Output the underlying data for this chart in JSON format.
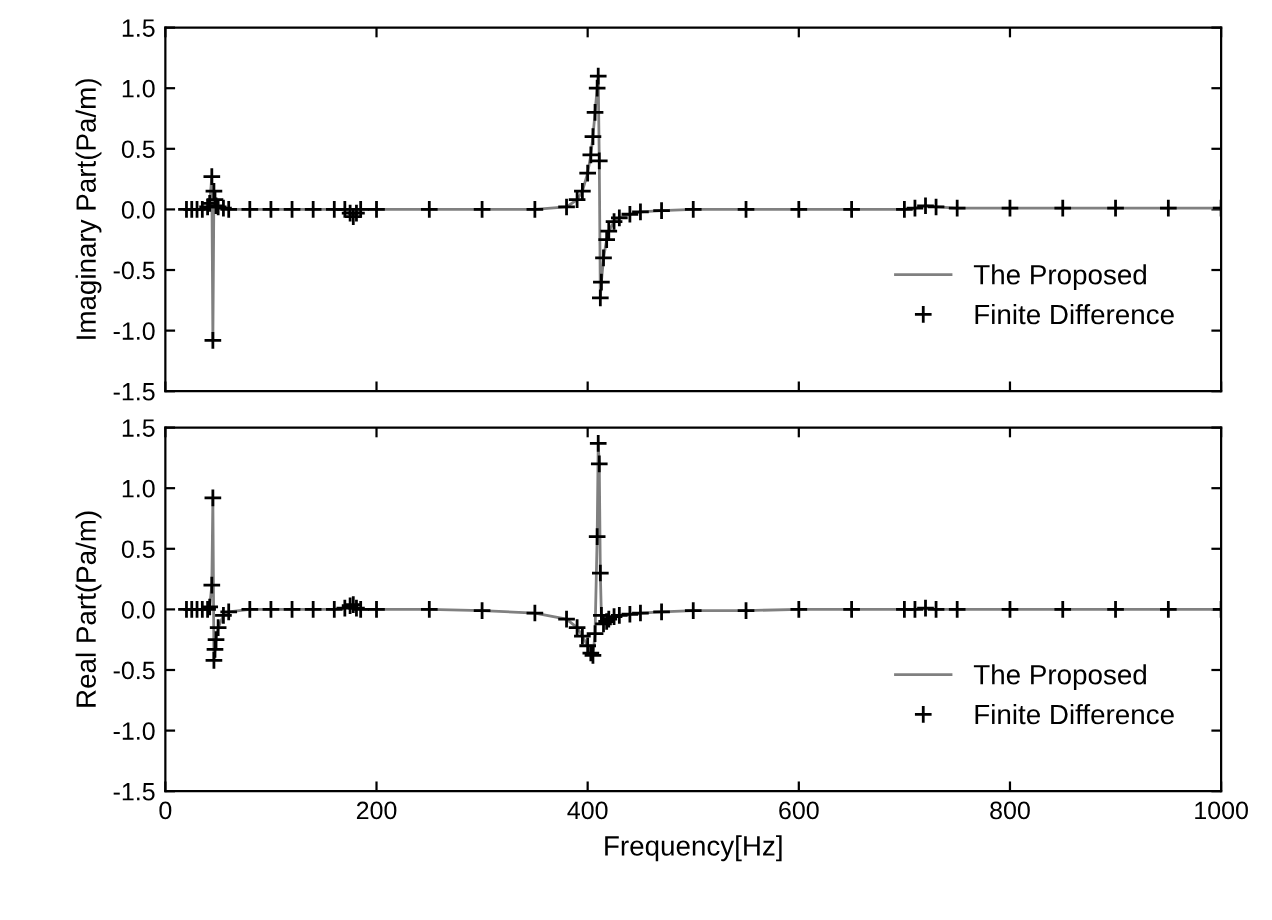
{
  "chart_data": [
    {
      "type": "line",
      "ylabel": "Imaginary Part(Pa/m)",
      "xlim": [
        0,
        1000
      ],
      "xticks": [
        0,
        200,
        400,
        600,
        800,
        1000
      ],
      "ylim": [
        -1.5,
        1.5
      ],
      "yticks": [
        -1.5,
        {
          "value": -1,
          "label": "-1.0"
        },
        -0.5,
        {
          "value": 0,
          "label": "0.0"
        },
        0.5,
        {
          "value": 1,
          "label": "1.0"
        },
        1.5
      ],
      "tick_labels": "y",
      "legend": "bottom right",
      "grid": false,
      "x": [
        20,
        25,
        30,
        35,
        40,
        42,
        44,
        45,
        46,
        47,
        48,
        50,
        55,
        60,
        80,
        100,
        120,
        140,
        160,
        170,
        175,
        178,
        181,
        185,
        200,
        250,
        300,
        350,
        380,
        390,
        395,
        400,
        403,
        405,
        407,
        409,
        410,
        411,
        412,
        413,
        415,
        418,
        420,
        425,
        430,
        440,
        450,
        470,
        500,
        550,
        600,
        650,
        700,
        710,
        720,
        730,
        750,
        800,
        850,
        900,
        950,
        1000
      ],
      "series": [
        {
          "name": "The Proposed",
          "color": "#808080",
          "line_style": "solid",
          "marker": "none",
          "values": [
            0,
            0,
            0,
            0,
            0.02,
            0.05,
            0.27,
            -1.08,
            0.15,
            0.08,
            0.03,
            0.02,
            0.01,
            0,
            0,
            0,
            0,
            0,
            0,
            0,
            -0.03,
            -0.06,
            -0.03,
            0,
            0,
            0,
            0,
            0,
            0.02,
            0.08,
            0.15,
            0.3,
            0.45,
            0.6,
            0.8,
            1.0,
            1.1,
            0.4,
            -0.73,
            -0.6,
            -0.4,
            -0.25,
            -0.18,
            -0.1,
            -0.07,
            -0.04,
            -0.02,
            -0.01,
            0,
            0,
            0,
            0,
            0,
            0.01,
            0.03,
            0.02,
            0.01,
            0.01,
            0.01,
            0.01,
            0.01,
            0.01
          ]
        },
        {
          "name": "Finite Difference",
          "type": "scatter",
          "color": "#000000",
          "marker": "cross",
          "values": [
            0,
            0,
            0,
            0,
            0.02,
            0.05,
            0.27,
            -1.08,
            0.15,
            0.08,
            0.03,
            0.02,
            0.01,
            0,
            0,
            0,
            0,
            0,
            0,
            0,
            -0.03,
            -0.06,
            -0.03,
            0,
            0,
            0,
            0,
            0,
            0.02,
            0.08,
            0.15,
            0.3,
            0.45,
            0.6,
            0.8,
            1.0,
            1.1,
            0.4,
            -0.73,
            -0.6,
            -0.4,
            -0.25,
            -0.18,
            -0.1,
            -0.07,
            -0.04,
            -0.02,
            -0.01,
            0,
            0,
            0,
            0,
            0,
            0.01,
            0.03,
            0.02,
            0.01,
            0.01,
            0.01,
            0.01,
            0.01,
            0.01
          ]
        }
      ]
    },
    {
      "type": "line",
      "ylabel": "Real Part(Pa/m)",
      "xlabel": "Frequency[Hz]",
      "xlim": [
        0,
        1000
      ],
      "xticks": [
        0,
        200,
        400,
        600,
        800,
        1000
      ],
      "ylim": [
        -1.5,
        1.5
      ],
      "yticks": [
        -1.5,
        {
          "value": -1,
          "label": "-1.0"
        },
        -0.5,
        {
          "value": 0,
          "label": "0.0"
        },
        0.5,
        {
          "value": 1,
          "label": "1.0"
        },
        1.5
      ],
      "legend": "bottom right",
      "grid": false,
      "x": [
        20,
        25,
        30,
        35,
        40,
        42,
        44,
        45,
        46,
        47,
        48,
        50,
        55,
        60,
        80,
        100,
        120,
        140,
        160,
        170,
        175,
        178,
        181,
        185,
        200,
        250,
        300,
        350,
        380,
        390,
        395,
        400,
        403,
        405,
        407,
        409,
        410,
        411,
        412,
        413,
        415,
        418,
        420,
        425,
        430,
        440,
        450,
        470,
        500,
        550,
        600,
        650,
        700,
        710,
        720,
        730,
        750,
        800,
        850,
        900,
        950,
        1000
      ],
      "series": [
        {
          "name": "The Proposed",
          "color": "#808080",
          "line_style": "solid",
          "marker": "none",
          "values": [
            0,
            0,
            0,
            0,
            0,
            0.02,
            0.2,
            0.92,
            -0.42,
            -0.33,
            -0.25,
            -0.15,
            -0.05,
            -0.02,
            0,
            0,
            0,
            0,
            0,
            0.01,
            0.03,
            0.04,
            0.01,
            0,
            0,
            0,
            -0.01,
            -0.03,
            -0.08,
            -0.15,
            -0.22,
            -0.3,
            -0.36,
            -0.38,
            -0.2,
            0.6,
            1.37,
            1.2,
            0.3,
            -0.05,
            -0.12,
            -0.1,
            -0.08,
            -0.06,
            -0.05,
            -0.04,
            -0.03,
            -0.02,
            -0.01,
            -0.01,
            0,
            0,
            0,
            0,
            0.01,
            0,
            0,
            0,
            0,
            0,
            0,
            0
          ]
        },
        {
          "name": "Finite Difference",
          "type": "scatter",
          "color": "#000000",
          "marker": "cross",
          "values": [
            0,
            0,
            0,
            0,
            0,
            0.02,
            0.2,
            0.92,
            -0.42,
            -0.33,
            -0.25,
            -0.15,
            -0.05,
            -0.02,
            0,
            0,
            0,
            0,
            0,
            0.01,
            0.03,
            0.04,
            0.01,
            0,
            0,
            0,
            -0.01,
            -0.03,
            -0.08,
            -0.15,
            -0.22,
            -0.3,
            -0.36,
            -0.38,
            -0.2,
            0.6,
            1.37,
            1.2,
            0.3,
            -0.05,
            -0.12,
            -0.1,
            -0.08,
            -0.06,
            -0.05,
            -0.04,
            -0.03,
            -0.02,
            -0.01,
            -0.01,
            0,
            0,
            0,
            0,
            0.01,
            0,
            0,
            0,
            0,
            0,
            0,
            0
          ]
        }
      ]
    }
  ]
}
